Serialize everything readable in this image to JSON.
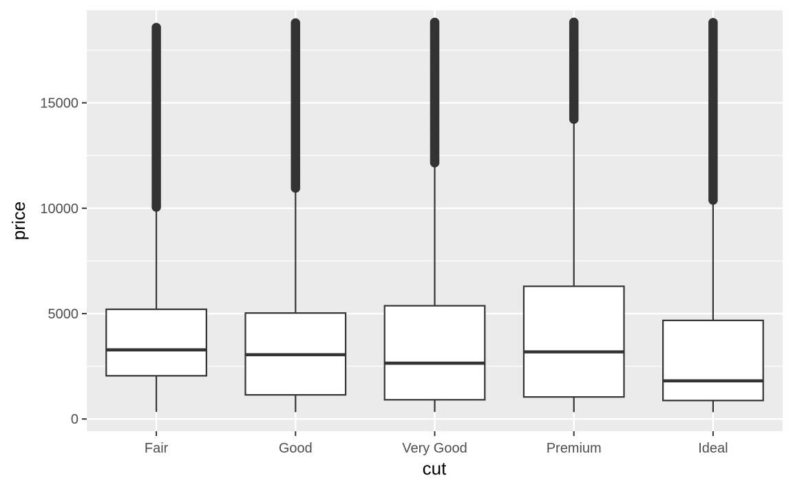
{
  "chart_data": {
    "type": "boxplot",
    "xlabel": "cut",
    "ylabel": "price",
    "categories": [
      "Fair",
      "Good",
      "Very Good",
      "Premium",
      "Ideal"
    ],
    "ylim": [
      -580,
      19390
    ],
    "yticks": [
      0,
      5000,
      10000,
      15000
    ],
    "grid": true,
    "legend": "none",
    "boxes": [
      {
        "category": "Fair",
        "whisker_low": 337,
        "q1": 2050,
        "median": 3282,
        "q3": 5206,
        "whisker_high": 9950,
        "outlier_low": 9980,
        "outlier_high": 18574
      },
      {
        "category": "Good",
        "whisker_low": 327,
        "q1": 1145,
        "median": 3050,
        "q3": 5028,
        "whisker_high": 10850,
        "outlier_low": 10880,
        "outlier_high": 18788
      },
      {
        "category": "Very Good",
        "whisker_low": 336,
        "q1": 912,
        "median": 2648,
        "q3": 5373,
        "whisker_high": 12050,
        "outlier_low": 12080,
        "outlier_high": 18818
      },
      {
        "category": "Premium",
        "whisker_low": 326,
        "q1": 1046,
        "median": 3185,
        "q3": 6296,
        "whisker_high": 14150,
        "outlier_low": 14180,
        "outlier_high": 18823
      },
      {
        "category": "Ideal",
        "whisker_low": 326,
        "q1": 878,
        "median": 1810,
        "q3": 4678,
        "whisker_high": 10350,
        "outlier_low": 10380,
        "outlier_high": 18806
      }
    ],
    "colors": {
      "panel": "#ebebeb",
      "grid": "#ffffff",
      "box_fill": "#ffffff",
      "box_line": "#333333",
      "outlier": "#333333",
      "tick": "#333333"
    }
  }
}
